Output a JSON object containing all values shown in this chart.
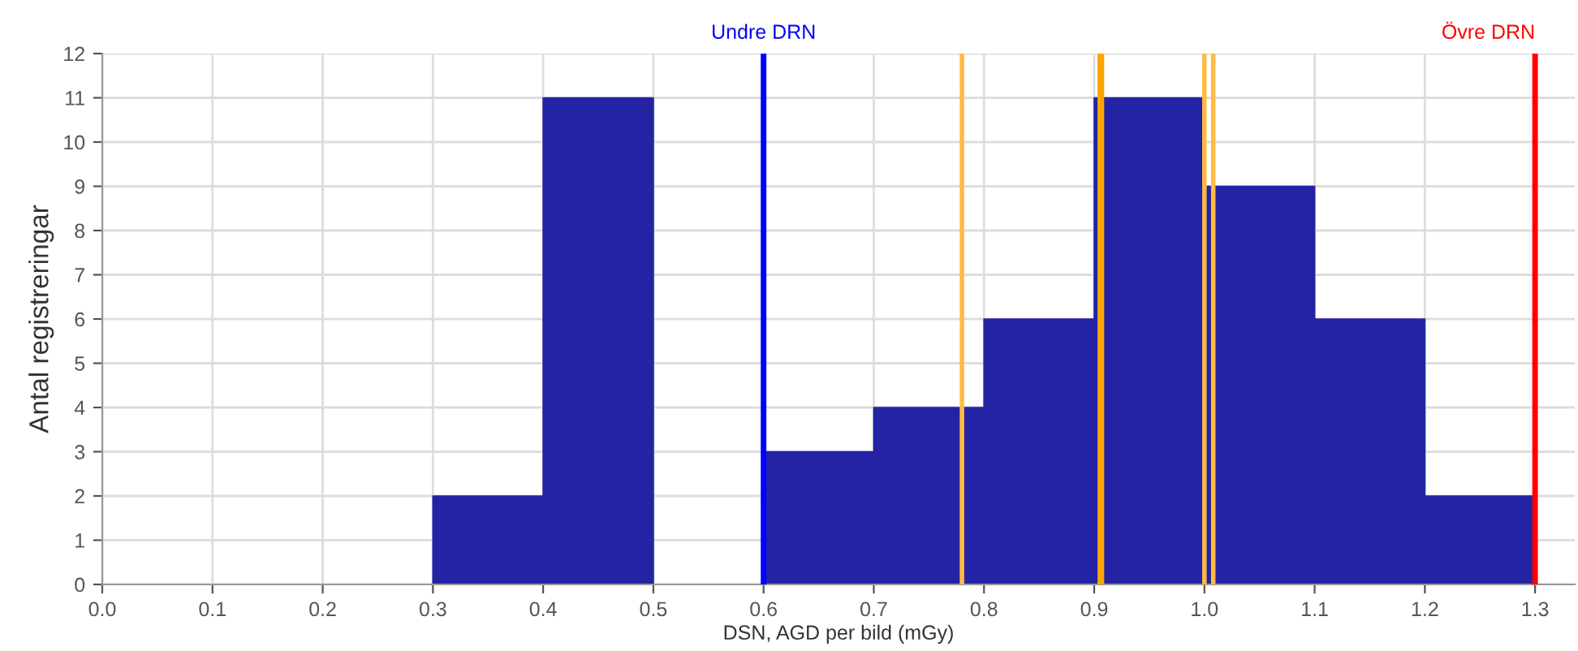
{
  "chart_data": {
    "type": "histogram",
    "xlabel": "DSN, AGD per bild (mGy)",
    "ylabel": "Antal registreringar",
    "bins": [
      0.3,
      0.4,
      0.5,
      0.6,
      0.7,
      0.8,
      0.9,
      1.0,
      1.1,
      1.2,
      1.3
    ],
    "values": [
      2,
      11,
      0,
      3,
      4,
      6,
      11,
      9,
      6,
      2
    ],
    "color": "#2323a3",
    "xlim": [
      0,
      1.336
    ],
    "xticks": [
      {
        "value": 0,
        "label": "0.0"
      },
      0.1,
      0.2,
      0.3,
      0.4,
      0.5,
      0.6,
      0.7,
      0.8,
      0.9,
      {
        "value": 1,
        "label": "1.0"
      },
      1.1,
      1.2,
      1.3
    ],
    "ylim": [
      0,
      12
    ],
    "yticks": [
      0,
      1,
      2,
      3,
      4,
      5,
      6,
      7,
      8,
      9,
      10,
      11,
      12
    ],
    "grid": true,
    "ref_lines": [
      {
        "axis": "x",
        "value": 0.6,
        "label": "Undre DRN",
        "color": "#0000ff"
      },
      {
        "axis": "x",
        "value": 1.3,
        "label": "Övre DRN",
        "color": "#ff0000"
      },
      {
        "axis": "x",
        "value": 0.78,
        "color": "#ffbb44"
      },
      {
        "axis": "x",
        "value": 0.905,
        "color": "#ffa500"
      },
      {
        "axis": "x",
        "value": 0.907,
        "color": "#ffa500"
      },
      {
        "axis": "x",
        "value": 1.0,
        "color": "#ffbb44"
      },
      {
        "axis": "x",
        "value": 1.008,
        "color": "#ffbb44"
      }
    ]
  }
}
